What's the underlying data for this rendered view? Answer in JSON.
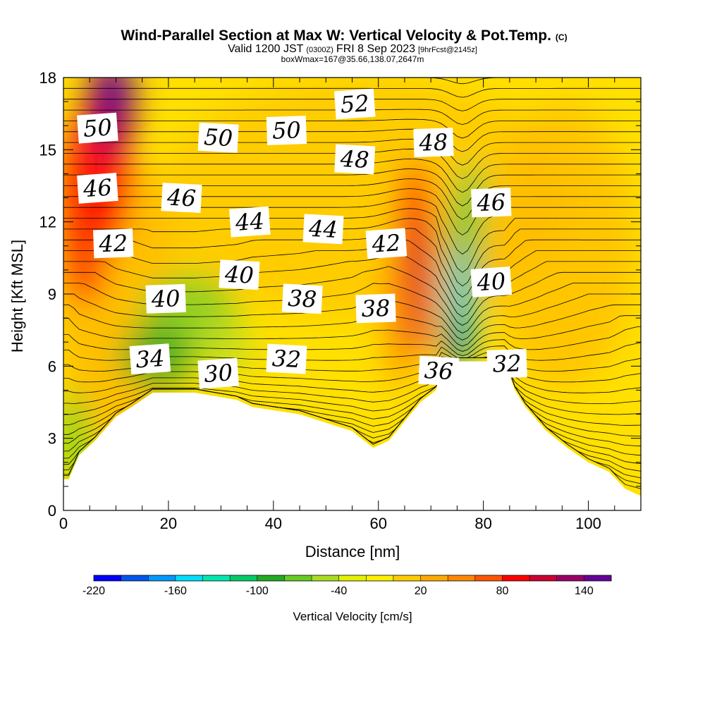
{
  "title": {
    "main": "Wind-Parallel Section at Max W: Vertical Velocity & Pot.Temp.",
    "main_suffix": "(C)",
    "valid_a": "Valid 1200 JST",
    "valid_b": "(0300Z)",
    "valid_c": "FRI 8 Sep 2023",
    "valid_d": "[9hrFcst@2145z]",
    "box": "boxWmax=167@35.66,138.07,2647m"
  },
  "chart_data": {
    "type": "heatmap",
    "xlabel": "Distance [nm]",
    "ylabel": "Height [Kft MSL]",
    "xlim": [
      0,
      110
    ],
    "ylim": [
      0,
      18
    ],
    "x_ticks": [
      "0",
      "20",
      "40",
      "60",
      "80",
      "100"
    ],
    "y_ticks": [
      "0",
      "3",
      "6",
      "9",
      "12",
      "15",
      "18"
    ],
    "colorbar": {
      "label": "Vertical Velocity [cm/s]",
      "tick_labels": [
        "-220",
        "-160",
        "-100",
        "-40",
        "20",
        "80",
        "140"
      ],
      "colors": [
        "#0000ff",
        "#0055ee",
        "#0099ff",
        "#00ddff",
        "#00e8b0",
        "#00cc66",
        "#22aa22",
        "#66cc22",
        "#aadd22",
        "#e6f000",
        "#ffee00",
        "#ffcc00",
        "#ffaa00",
        "#ff8800",
        "#ff5500",
        "#ff0000",
        "#cc0033",
        "#990066",
        "#660099"
      ]
    },
    "terrain_kft": [
      [
        0,
        1.3
      ],
      [
        1,
        1.3
      ],
      [
        3,
        2.3
      ],
      [
        6,
        2.9
      ],
      [
        10,
        3.9
      ],
      [
        13,
        4.3
      ],
      [
        17,
        4.9
      ],
      [
        25,
        4.9
      ],
      [
        33,
        4.6
      ],
      [
        36,
        4.3
      ],
      [
        45,
        4.0
      ],
      [
        55,
        3.3
      ],
      [
        59,
        2.6
      ],
      [
        62,
        2.9
      ],
      [
        65,
        3.7
      ],
      [
        68,
        4.5
      ],
      [
        71,
        5.0
      ],
      [
        72,
        6.2
      ],
      [
        84,
        6.2
      ],
      [
        86,
        5.0
      ],
      [
        88,
        4.3
      ],
      [
        92,
        3.3
      ],
      [
        96,
        2.6
      ],
      [
        100,
        2.0
      ],
      [
        104,
        1.6
      ],
      [
        107,
        0.9
      ],
      [
        110,
        0.6
      ]
    ],
    "theta_labels": [
      {
        "text": "50",
        "x": 6.5,
        "y": 15.9
      },
      {
        "text": "50",
        "x": 29.5,
        "y": 15.5
      },
      {
        "text": "50",
        "x": 42.5,
        "y": 15.8
      },
      {
        "text": "52",
        "x": 55.5,
        "y": 16.9
      },
      {
        "text": "48",
        "x": 55.5,
        "y": 14.6
      },
      {
        "text": "48",
        "x": 70.5,
        "y": 15.3
      },
      {
        "text": "46",
        "x": 6.5,
        "y": 13.4
      },
      {
        "text": "46",
        "x": 22.5,
        "y": 13.0
      },
      {
        "text": "46",
        "x": 81.5,
        "y": 12.8
      },
      {
        "text": "44",
        "x": 35.5,
        "y": 12.0
      },
      {
        "text": "44",
        "x": 49.5,
        "y": 11.7
      },
      {
        "text": "42",
        "x": 9.5,
        "y": 11.1
      },
      {
        "text": "42",
        "x": 61.5,
        "y": 11.1
      },
      {
        "text": "40",
        "x": 33.5,
        "y": 9.8
      },
      {
        "text": "40",
        "x": 19.5,
        "y": 8.8
      },
      {
        "text": "40",
        "x": 81.5,
        "y": 9.5
      },
      {
        "text": "38",
        "x": 45.5,
        "y": 8.8
      },
      {
        "text": "38",
        "x": 59.5,
        "y": 8.4
      },
      {
        "text": "34",
        "x": 16.5,
        "y": 6.3
      },
      {
        "text": "32",
        "x": 42.5,
        "y": 6.3
      },
      {
        "text": "32",
        "x": 84.5,
        "y": 6.1
      },
      {
        "text": "30",
        "x": 29.5,
        "y": 5.7
      },
      {
        "text": "36",
        "x": 71.5,
        "y": 5.8
      }
    ]
  }
}
